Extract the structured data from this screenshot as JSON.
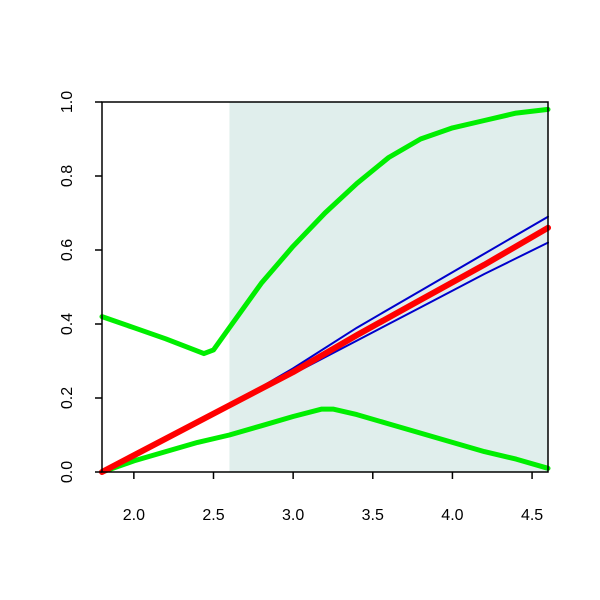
{
  "chart_data": {
    "type": "line",
    "title": "",
    "xlabel": "",
    "ylabel": "",
    "xlim": [
      1.8,
      4.6
    ],
    "ylim": [
      0.0,
      1.0
    ],
    "grid": false,
    "legend": "none",
    "x_ticks": [
      2.0,
      2.5,
      3.0,
      3.5,
      4.0,
      4.5
    ],
    "x_tick_labels": [
      "2.0",
      "2.5",
      "3.0",
      "3.5",
      "4.0",
      "4.5"
    ],
    "y_ticks": [
      0.0,
      0.2,
      0.4,
      0.6,
      0.8,
      1.0
    ],
    "y_tick_labels": [
      "0.0",
      "0.2",
      "0.4",
      "0.6",
      "0.8",
      "1.0"
    ],
    "shaded_region": {
      "x_start": 2.6,
      "x_end": 4.6,
      "color": "#e0eeec"
    },
    "series": [
      {
        "color": "#00ee00",
        "x": [
          1.8,
          2.0,
          2.2,
          2.44,
          2.5,
          2.6,
          2.8,
          3.0,
          3.2,
          3.4,
          3.6,
          3.8,
          4.0,
          4.2,
          4.4,
          4.6
        ],
        "y": [
          0.42,
          0.39,
          0.36,
          0.32,
          0.33,
          0.39,
          0.51,
          0.61,
          0.7,
          0.78,
          0.85,
          0.9,
          0.93,
          0.95,
          0.97,
          0.98
        ]
      },
      {
        "color": "#00ee00",
        "x": [
          1.8,
          2.0,
          2.2,
          2.4,
          2.6,
          2.8,
          3.0,
          3.18,
          3.25,
          3.4,
          3.6,
          3.8,
          4.0,
          4.2,
          4.4,
          4.6
        ],
        "y": [
          0.0,
          0.03,
          0.055,
          0.08,
          0.1,
          0.125,
          0.15,
          0.17,
          0.17,
          0.155,
          0.13,
          0.105,
          0.08,
          0.055,
          0.035,
          0.01
        ]
      },
      {
        "color": "#0000cc",
        "x": [
          1.8,
          2.2,
          2.6,
          3.0,
          3.4,
          3.8,
          4.2,
          4.6
        ],
        "y": [
          0.0,
          0.09,
          0.18,
          0.28,
          0.39,
          0.49,
          0.59,
          0.69
        ]
      },
      {
        "color": "#0000cc",
        "x": [
          1.8,
          2.2,
          2.6,
          3.0,
          3.4,
          3.8,
          4.2,
          4.6
        ],
        "y": [
          0.0,
          0.09,
          0.18,
          0.265,
          0.355,
          0.445,
          0.535,
          0.62
        ]
      },
      {
        "color": "#ff0000",
        "x": [
          1.8,
          2.2,
          2.6,
          3.0,
          3.4,
          3.8,
          4.2,
          4.6
        ],
        "y": [
          0.0,
          0.09,
          0.18,
          0.27,
          0.37,
          0.465,
          0.56,
          0.66
        ]
      }
    ]
  }
}
